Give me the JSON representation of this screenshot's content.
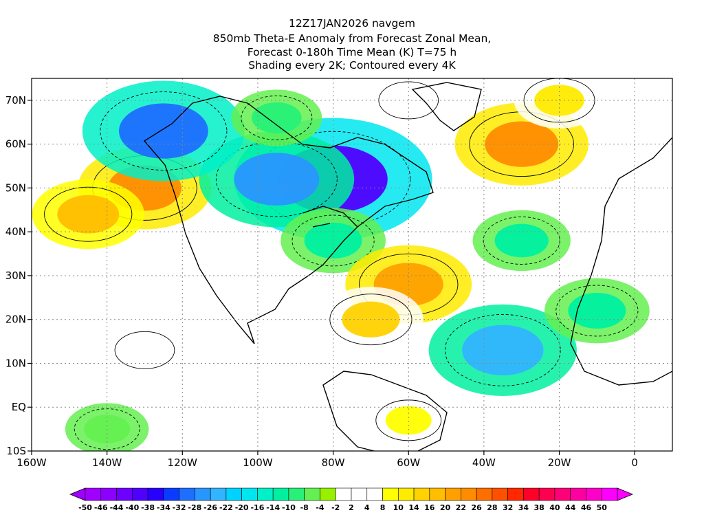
{
  "title": {
    "line1": "12Z17JAN2026 navgem",
    "line2": "850mb Theta-E Anomaly from Forecast Zonal Mean,",
    "line3": "Forecast 0-180h Time Mean (K) T=75 h",
    "line4": "Shading every 2K; Contoured every 4K"
  },
  "map": {
    "lon_range": [
      -160,
      10
    ],
    "lat_range": [
      -10,
      75
    ],
    "lon_ticks": [
      {
        "value": -160,
        "label": "160W"
      },
      {
        "value": -140,
        "label": "140W"
      },
      {
        "value": -120,
        "label": "120W"
      },
      {
        "value": -100,
        "label": "100W"
      },
      {
        "value": -80,
        "label": "80W"
      },
      {
        "value": -60,
        "label": "60W"
      },
      {
        "value": -40,
        "label": "40W"
      },
      {
        "value": -20,
        "label": "20W"
      },
      {
        "value": 0,
        "label": "0"
      }
    ],
    "lat_ticks": [
      {
        "value": 70,
        "label": "70N"
      },
      {
        "value": 60,
        "label": "60N"
      },
      {
        "value": 50,
        "label": "50N"
      },
      {
        "value": 40,
        "label": "40N"
      },
      {
        "value": 30,
        "label": "30N"
      },
      {
        "value": 20,
        "label": "20N"
      },
      {
        "value": 10,
        "label": "10N"
      },
      {
        "value": 0,
        "label": "EQ"
      },
      {
        "value": -10,
        "label": "10S"
      }
    ],
    "grid": true,
    "regions": [
      {
        "lon": -130,
        "lat": 50,
        "value": 22
      },
      {
        "lon": -145,
        "lat": 44,
        "value": 16
      },
      {
        "lon": -80,
        "lat": 52,
        "value": -40
      },
      {
        "lon": -95,
        "lat": 52,
        "value": -28
      },
      {
        "lon": -125,
        "lat": 63,
        "value": -30
      },
      {
        "lon": -80,
        "lat": 38,
        "value": -14
      },
      {
        "lon": -95,
        "lat": 66,
        "value": -10
      },
      {
        "lon": -60,
        "lat": 28,
        "value": 20
      },
      {
        "lon": -70,
        "lat": 20,
        "value": 14
      },
      {
        "lon": -30,
        "lat": 60,
        "value": 22
      },
      {
        "lon": -30,
        "lat": 38,
        "value": -12
      },
      {
        "lon": -35,
        "lat": 13,
        "value": -26
      },
      {
        "lon": -10,
        "lat": 22,
        "value": -14
      },
      {
        "lon": -60,
        "lat": -3,
        "value": 8
      },
      {
        "lon": -130,
        "lat": 13,
        "value": 6
      },
      {
        "lon": -140,
        "lat": -5,
        "value": -8
      },
      {
        "lon": -60,
        "lat": 70,
        "value": 6
      },
      {
        "lon": -20,
        "lat": 70,
        "value": 10
      }
    ]
  },
  "colorbar": {
    "labels": [
      "-50",
      "-46",
      "-44",
      "-40",
      "-38",
      "-34",
      "-32",
      "-28",
      "-26",
      "-22",
      "-20",
      "-16",
      "-14",
      "-10",
      "-8",
      "-4",
      "-2",
      "2",
      "4",
      "8",
      "10",
      "14",
      "16",
      "20",
      "22",
      "26",
      "28",
      "32",
      "34",
      "38",
      "40",
      "44",
      "46",
      "50"
    ],
    "colors": [
      "#a000ff",
      "#8c00ff",
      "#6e00ff",
      "#5000ff",
      "#2800ff",
      "#0a3cff",
      "#1e6eff",
      "#2896ff",
      "#32b4ff",
      "#00d2ff",
      "#00e6f0",
      "#00f0c8",
      "#00f0a0",
      "#28f078",
      "#64f050",
      "#96f000",
      "#ffffff",
      "#ffffff",
      "#ffffff",
      "#ffff00",
      "#ffeb00",
      "#ffd200",
      "#ffbe00",
      "#ffa000",
      "#ff8c00",
      "#ff6e00",
      "#ff5000",
      "#ff2800",
      "#ff0028",
      "#ff0050",
      "#ff0078",
      "#ff00a0",
      "#ff00c8",
      "#ff00ff"
    ],
    "under_color": "#a000ff",
    "over_color": "#ff00ff"
  }
}
